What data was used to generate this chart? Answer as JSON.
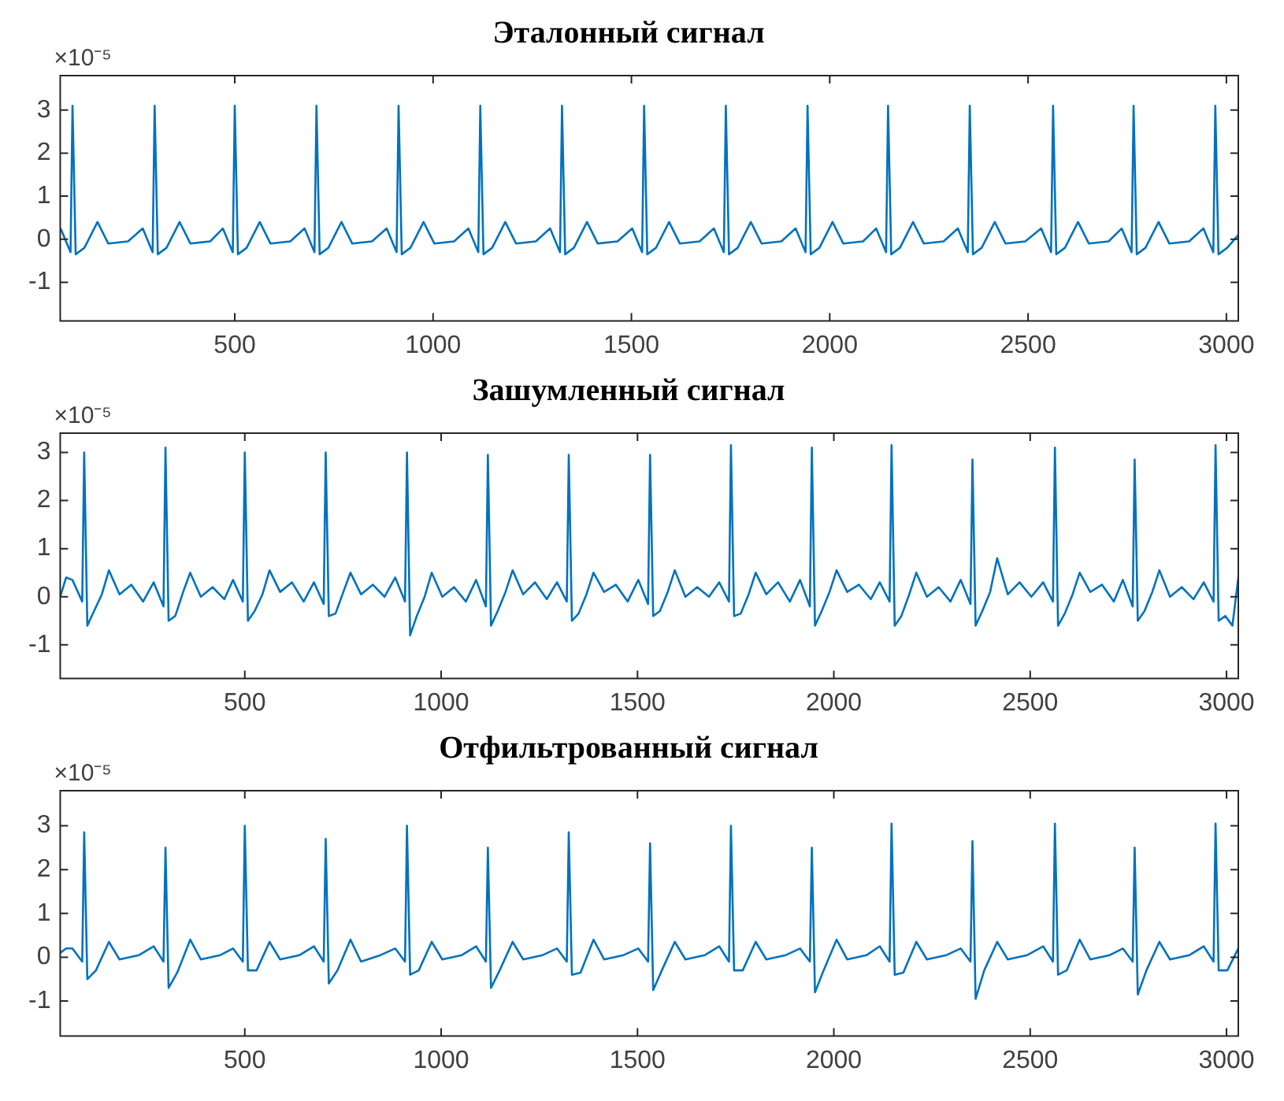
{
  "chart_data": [
    {
      "type": "line",
      "title": "Эталонный сигнал",
      "annotations": [
        "×10⁻⁵"
      ],
      "xlim": [
        60,
        3030
      ],
      "ylim": [
        -1.9,
        3.8
      ],
      "xticks": [
        500,
        1000,
        1500,
        2000,
        2500,
        3000
      ],
      "yticks": [
        -1,
        0,
        1,
        2,
        3
      ],
      "x": [
        61,
        86,
        91,
        99,
        121,
        154,
        181,
        231,
        268,
        293,
        298,
        306,
        328,
        361,
        388,
        438,
        470,
        495,
        500,
        508,
        530,
        563,
        590,
        640,
        676,
        701,
        706,
        714,
        736,
        769,
        796,
        846,
        883,
        908,
        913,
        921,
        943,
        976,
        1003,
        1053,
        1089,
        1114,
        1119,
        1127,
        1149,
        1182,
        1209,
        1259,
        1295,
        1320,
        1325,
        1333,
        1355,
        1388,
        1415,
        1465,
        1502,
        1527,
        1532,
        1540,
        1562,
        1595,
        1622,
        1672,
        1708,
        1733,
        1738,
        1746,
        1768,
        1801,
        1828,
        1878,
        1914,
        1939,
        1944,
        1952,
        1974,
        2007,
        2034,
        2084,
        2117,
        2142,
        2147,
        2155,
        2177,
        2210,
        2237,
        2287,
        2323,
        2348,
        2353,
        2361,
        2383,
        2416,
        2443,
        2493,
        2533,
        2558,
        2563,
        2571,
        2593,
        2626,
        2653,
        2703,
        2736,
        2761,
        2766,
        2774,
        2796,
        2829,
        2856,
        2906,
        2942,
        2967,
        2972,
        2980,
        3002,
        3030
      ],
      "series": [
        {
          "color": "#0072bd",
          "values": [
            0.25,
            -0.3,
            3.1,
            -0.35,
            -0.2,
            0.4,
            -0.1,
            -0.05,
            0.25,
            -0.3,
            3.1,
            -0.35,
            -0.2,
            0.4,
            -0.1,
            -0.05,
            0.25,
            -0.3,
            3.1,
            -0.35,
            -0.2,
            0.4,
            -0.1,
            -0.05,
            0.25,
            -0.3,
            3.1,
            -0.35,
            -0.2,
            0.4,
            -0.1,
            -0.05,
            0.25,
            -0.3,
            3.1,
            -0.35,
            -0.2,
            0.4,
            -0.1,
            -0.05,
            0.25,
            -0.3,
            3.1,
            -0.35,
            -0.2,
            0.4,
            -0.1,
            -0.05,
            0.25,
            -0.3,
            3.1,
            -0.35,
            -0.2,
            0.4,
            -0.1,
            -0.05,
            0.25,
            -0.3,
            3.1,
            -0.35,
            -0.2,
            0.4,
            -0.1,
            -0.05,
            0.25,
            -0.3,
            3.1,
            -0.35,
            -0.2,
            0.4,
            -0.1,
            -0.05,
            0.25,
            -0.3,
            3.1,
            -0.35,
            -0.2,
            0.4,
            -0.1,
            -0.05,
            0.25,
            -0.3,
            3.1,
            -0.35,
            -0.2,
            0.4,
            -0.1,
            -0.05,
            0.25,
            -0.3,
            3.1,
            -0.35,
            -0.2,
            0.4,
            -0.1,
            -0.05,
            0.25,
            -0.3,
            3.1,
            -0.35,
            -0.2,
            0.4,
            -0.1,
            -0.05,
            0.25,
            -0.3,
            3.1,
            -0.35,
            -0.2,
            0.4,
            -0.1,
            -0.05,
            0.25,
            -0.3,
            3.1,
            -0.35,
            -0.2,
            0.1
          ]
        }
      ]
    },
    {
      "type": "line",
      "title": "Зашумленный сигнал",
      "annotations": [
        "×10⁻⁵"
      ],
      "xlim": [
        30,
        3030
      ],
      "ylim": [
        -1.7,
        3.4
      ],
      "xticks": [
        500,
        1000,
        1500,
        2000,
        2500,
        3000
      ],
      "yticks": [
        -1,
        0,
        1,
        2,
        3
      ],
      "x": [
        30,
        45,
        61,
        86,
        91,
        99,
        116,
        136,
        154,
        181,
        211,
        241,
        268,
        293,
        298,
        306,
        323,
        343,
        361,
        388,
        418,
        448,
        470,
        495,
        500,
        508,
        525,
        545,
        563,
        590,
        620,
        650,
        676,
        701,
        706,
        714,
        731,
        751,
        769,
        796,
        826,
        856,
        883,
        908,
        913,
        921,
        938,
        958,
        976,
        1003,
        1033,
        1063,
        1089,
        1114,
        1119,
        1127,
        1144,
        1164,
        1182,
        1209,
        1239,
        1269,
        1295,
        1320,
        1325,
        1333,
        1350,
        1370,
        1388,
        1415,
        1445,
        1475,
        1502,
        1527,
        1532,
        1540,
        1557,
        1577,
        1595,
        1622,
        1652,
        1682,
        1708,
        1733,
        1738,
        1746,
        1763,
        1783,
        1801,
        1828,
        1858,
        1888,
        1914,
        1939,
        1944,
        1952,
        1969,
        1989,
        2007,
        2034,
        2064,
        2094,
        2117,
        2142,
        2147,
        2155,
        2172,
        2192,
        2210,
        2237,
        2267,
        2297,
        2323,
        2348,
        2353,
        2361,
        2378,
        2398,
        2416,
        2443,
        2473,
        2503,
        2533,
        2558,
        2563,
        2571,
        2588,
        2608,
        2626,
        2653,
        2683,
        2713,
        2736,
        2761,
        2766,
        2774,
        2791,
        2811,
        2829,
        2856,
        2886,
        2916,
        2942,
        2967,
        2972,
        2980,
        2997,
        3015,
        3030
      ],
      "series": [
        {
          "color": "#0072bd",
          "values": [
            0.0,
            0.4,
            0.35,
            -0.1,
            3.0,
            -0.6,
            -0.3,
            0.05,
            0.55,
            0.05,
            0.25,
            -0.1,
            0.3,
            -0.2,
            3.1,
            -0.5,
            -0.4,
            0.1,
            0.5,
            0.0,
            0.2,
            -0.05,
            0.35,
            -0.1,
            3.0,
            -0.5,
            -0.3,
            0.05,
            0.55,
            0.1,
            0.3,
            -0.1,
            0.3,
            -0.15,
            3.0,
            -0.4,
            -0.35,
            0.1,
            0.5,
            0.05,
            0.25,
            0.0,
            0.4,
            -0.1,
            3.0,
            -0.8,
            -0.4,
            0.0,
            0.5,
            0.0,
            0.2,
            -0.1,
            0.35,
            -0.2,
            2.95,
            -0.6,
            -0.3,
            0.1,
            0.55,
            0.05,
            0.3,
            -0.05,
            0.3,
            -0.1,
            2.95,
            -0.5,
            -0.35,
            0.05,
            0.5,
            0.1,
            0.25,
            -0.1,
            0.35,
            -0.15,
            2.95,
            -0.4,
            -0.3,
            0.1,
            0.55,
            0.0,
            0.2,
            0.0,
            0.3,
            -0.1,
            3.15,
            -0.4,
            -0.35,
            0.05,
            0.5,
            0.05,
            0.3,
            -0.1,
            0.35,
            -0.2,
            3.1,
            -0.6,
            -0.3,
            0.1,
            0.55,
            0.1,
            0.25,
            -0.05,
            0.3,
            -0.1,
            3.15,
            -0.6,
            -0.4,
            0.05,
            0.5,
            0.0,
            0.2,
            -0.1,
            0.35,
            -0.15,
            2.85,
            -0.6,
            -0.3,
            0.1,
            0.8,
            0.05,
            0.3,
            0.0,
            0.3,
            -0.1,
            3.1,
            -0.6,
            -0.35,
            0.05,
            0.5,
            0.1,
            0.25,
            -0.1,
            0.35,
            -0.2,
            2.85,
            -0.5,
            -0.3,
            0.1,
            0.55,
            0.0,
            0.2,
            -0.05,
            0.3,
            -0.1,
            3.15,
            -0.5,
            -0.4,
            -0.6,
            0.4
          ]
        }
      ]
    },
    {
      "type": "line",
      "title": "Отфильтрованный сигнал",
      "annotations": [
        "×10⁻⁵"
      ],
      "xlim": [
        30,
        3030
      ],
      "ylim": [
        -1.8,
        3.8
      ],
      "xticks": [
        500,
        1000,
        1500,
        2000,
        2500,
        3000
      ],
      "yticks": [
        -1,
        0,
        1,
        2,
        3
      ],
      "x": [
        30,
        45,
        61,
        86,
        91,
        99,
        121,
        154,
        181,
        231,
        268,
        293,
        298,
        306,
        328,
        361,
        388,
        438,
        470,
        495,
        500,
        508,
        530,
        563,
        590,
        640,
        676,
        701,
        706,
        714,
        736,
        769,
        796,
        846,
        883,
        908,
        913,
        921,
        943,
        976,
        1003,
        1053,
        1089,
        1114,
        1119,
        1127,
        1149,
        1182,
        1209,
        1259,
        1295,
        1320,
        1325,
        1333,
        1355,
        1388,
        1415,
        1465,
        1502,
        1527,
        1532,
        1540,
        1562,
        1595,
        1622,
        1672,
        1708,
        1733,
        1738,
        1746,
        1768,
        1801,
        1828,
        1878,
        1914,
        1939,
        1944,
        1952,
        1974,
        2007,
        2034,
        2084,
        2117,
        2142,
        2147,
        2155,
        2177,
        2210,
        2237,
        2287,
        2323,
        2348,
        2353,
        2361,
        2383,
        2416,
        2443,
        2493,
        2533,
        2558,
        2563,
        2571,
        2593,
        2626,
        2653,
        2703,
        2736,
        2761,
        2766,
        2774,
        2796,
        2829,
        2856,
        2906,
        2942,
        2967,
        2972,
        2980,
        3002,
        3030
      ],
      "series": [
        {
          "color": "#0072bd",
          "values": [
            0.1,
            0.2,
            0.2,
            -0.1,
            2.85,
            -0.5,
            -0.3,
            0.35,
            -0.05,
            0.05,
            0.25,
            -0.1,
            2.5,
            -0.7,
            -0.35,
            0.4,
            -0.05,
            0.05,
            0.2,
            -0.1,
            3.0,
            -0.3,
            -0.3,
            0.35,
            -0.05,
            0.05,
            0.25,
            -0.1,
            2.7,
            -0.6,
            -0.3,
            0.4,
            -0.1,
            0.05,
            0.2,
            -0.1,
            3.0,
            -0.4,
            -0.3,
            0.35,
            -0.05,
            0.05,
            0.25,
            -0.1,
            2.5,
            -0.7,
            -0.3,
            0.35,
            -0.05,
            0.05,
            0.2,
            -0.1,
            2.85,
            -0.4,
            -0.35,
            0.4,
            -0.05,
            0.05,
            0.2,
            -0.1,
            2.6,
            -0.75,
            -0.3,
            0.35,
            -0.05,
            0.05,
            0.25,
            -0.1,
            3.0,
            -0.3,
            -0.3,
            0.35,
            -0.05,
            0.05,
            0.2,
            -0.1,
            2.5,
            -0.8,
            -0.3,
            0.4,
            -0.05,
            0.05,
            0.25,
            -0.1,
            3.05,
            -0.4,
            -0.35,
            0.35,
            -0.05,
            0.05,
            0.2,
            -0.1,
            2.65,
            -0.95,
            -0.3,
            0.35,
            -0.05,
            0.05,
            0.25,
            -0.1,
            3.05,
            -0.4,
            -0.3,
            0.4,
            -0.05,
            0.05,
            0.2,
            -0.1,
            2.5,
            -0.85,
            -0.3,
            0.35,
            -0.05,
            0.05,
            0.25,
            -0.1,
            3.05,
            -0.3,
            -0.3,
            0.2
          ]
        }
      ]
    }
  ]
}
